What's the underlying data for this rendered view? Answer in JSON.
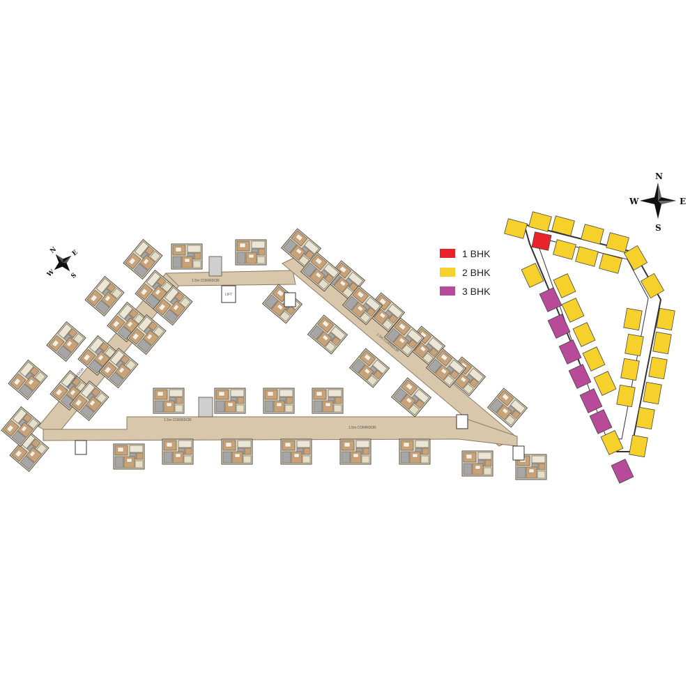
{
  "legend": {
    "items": [
      {
        "label": "1 BHK",
        "color": "#e8242a"
      },
      {
        "label": "2 BHK",
        "color": "#f6d12c"
      },
      {
        "label": "3 BHK",
        "color": "#b84a9a"
      }
    ]
  },
  "compass_left": {
    "n": "N",
    "e": "E",
    "s": "S",
    "w": "W"
  },
  "compass_right": {
    "n": "N",
    "e": "E",
    "s": "S",
    "w": "W"
  },
  "floor_plan": {
    "corridor_labels": [
      "1.5m CORRIDOR",
      "1.5m CORRIDOR",
      "1.5m CORRIDOR",
      "1.5m CORRIDOR",
      "1.5m CORRIDOR"
    ],
    "lift_label": "LIFT",
    "colors": {
      "corridor": "#d9c7ab",
      "flat_base": "#dcdccb",
      "room_brown": "#c9a277",
      "room_grey": "#a6a6a6",
      "wall": "#5a4a3a"
    }
  },
  "key_plan": {
    "colors": {
      "one_bhk": "#e8242a",
      "two_bhk": "#f6d12c",
      "three_bhk": "#b84a9a"
    }
  }
}
